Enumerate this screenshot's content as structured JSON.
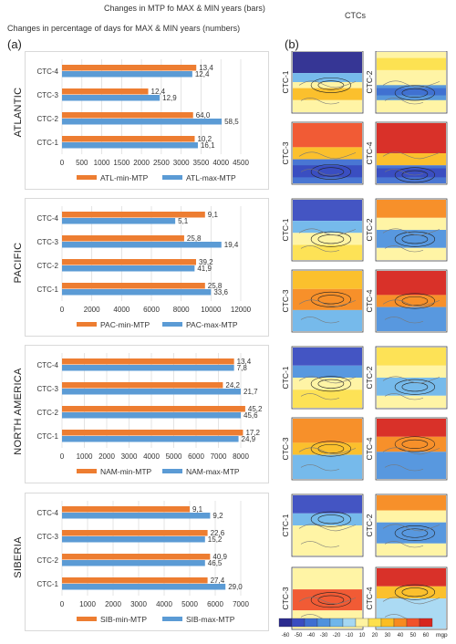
{
  "header": {
    "line1": "Changes in MTP fo MAX & MIN years (bars)",
    "line2": "Changes in percentage of days for MAX & MIN years (numbers)",
    "right": "CTCs"
  },
  "panel_labels": {
    "a": "(a)",
    "b": "(b)"
  },
  "colors": {
    "min": "#ED7D31",
    "max": "#5B9BD5"
  },
  "chart_data": [
    {
      "type": "bar",
      "orientation": "horizontal",
      "region": "ATLANTIC",
      "categories": [
        "CTC-4",
        "CTC-3",
        "CTC-2",
        "CTC-1"
      ],
      "series": [
        {
          "name": "ATL-min-MTP",
          "values": [
            3380,
            2170,
            3300,
            3340
          ],
          "labels": [
            "13,4",
            "12,4",
            "64,0",
            "10,2"
          ]
        },
        {
          "name": "ATL-max-MTP",
          "values": [
            3280,
            2460,
            4020,
            3420
          ],
          "labels": [
            "12,4",
            "12,9",
            "58,5",
            "16,1"
          ]
        }
      ],
      "xlim": [
        0,
        4500
      ],
      "ticks": [
        "0",
        "500",
        "1000",
        "1500",
        "2000",
        "2500",
        "3000",
        "3500",
        "4000",
        "4500"
      ]
    },
    {
      "type": "bar",
      "orientation": "horizontal",
      "region": "PACIFIC",
      "categories": [
        "CTC-4",
        "CTC-3",
        "CTC-2",
        "CTC-1"
      ],
      "series": [
        {
          "name": "PAC-min-MTP",
          "values": [
            9600,
            8200,
            9000,
            9600
          ],
          "labels": [
            "9,1",
            "25,8",
            "39,2",
            "25,8"
          ]
        },
        {
          "name": "PAC-max-MTP",
          "values": [
            7600,
            10700,
            8900,
            10000
          ],
          "labels": [
            "5,1",
            "19,4",
            "41,9",
            "33,6"
          ]
        }
      ],
      "xlim": [
        0,
        12000
      ],
      "ticks": [
        "0",
        "2000",
        "4000",
        "6000",
        "8000",
        "10000",
        "12000"
      ]
    },
    {
      "type": "bar",
      "orientation": "horizontal",
      "region": "NORTH AMERICA",
      "categories": [
        "CTC-4",
        "CTC-3",
        "CTC-2",
        "CTC-1"
      ],
      "series": [
        {
          "name": "NAM-min-MTP",
          "values": [
            7700,
            7200,
            8200,
            8100
          ],
          "labels": [
            "13,4",
            "24,2",
            "45,2",
            "17,2"
          ]
        },
        {
          "name": "NAM-max-MTP",
          "values": [
            7700,
            8000,
            8000,
            7900
          ],
          "labels": [
            "7,8",
            "21,7",
            "45,6",
            "24,9"
          ]
        }
      ],
      "xlim": [
        0,
        8000
      ],
      "ticks": [
        "0",
        "1000",
        "2000",
        "3000",
        "4000",
        "5000",
        "6000",
        "7000",
        "8000"
      ]
    },
    {
      "type": "bar",
      "orientation": "horizontal",
      "region": "SIBERIA",
      "categories": [
        "CTC-4",
        "CTC-3",
        "CTC-2",
        "CTC-1"
      ],
      "series": [
        {
          "name": "SIB-min-MTP",
          "values": [
            5000,
            5700,
            5800,
            5700
          ],
          "labels": [
            "9,1",
            "22,6",
            "40,9",
            "27,4"
          ]
        },
        {
          "name": "SIB-max-MTP",
          "values": [
            5800,
            5600,
            5600,
            6400
          ],
          "labels": [
            "9,2",
            "15,2",
            "46,5",
            "29,0"
          ]
        }
      ],
      "xlim": [
        0,
        7000
      ],
      "ticks": [
        "0",
        "1000",
        "2000",
        "3000",
        "4000",
        "5000",
        "6000",
        "7000"
      ]
    }
  ],
  "maps": {
    "map_labels": [
      "CTC-1",
      "CTC-2",
      "CTC-3",
      "CTC-4"
    ],
    "colorbar": {
      "ticks": [
        "-60",
        "-50",
        "-40",
        "-30",
        "-20",
        "-10",
        "10",
        "20",
        "30",
        "40",
        "50",
        "60"
      ],
      "unit": "mgp",
      "colors": [
        "#2b2b8f",
        "#3a4cc0",
        "#3f6fd1",
        "#4f92dd",
        "#6fb6ea",
        "#a6d8f2",
        "#fff3a0",
        "#fde04d",
        "#fbbd22",
        "#f78a1f",
        "#f0522a",
        "#d7261e"
      ]
    }
  }
}
